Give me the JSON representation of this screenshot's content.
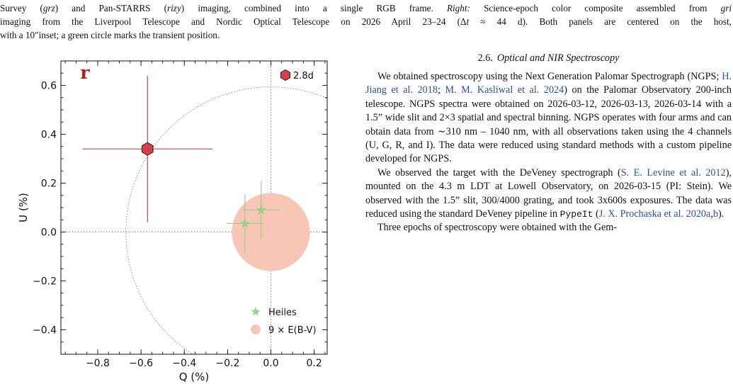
{
  "caption": {
    "line1": [
      {
        "t": "Survey ("
      },
      {
        "t": "grz",
        "i": true
      },
      {
        "t": ") and Pan-STARRS ("
      },
      {
        "t": "rizy",
        "i": true
      },
      {
        "t": ") imaging, combined into a single RGB frame. "
      },
      {
        "t": "Right:",
        "i": true
      },
      {
        "t": " Science-epoch color composite assembled from "
      },
      {
        "t": "gri",
        "i": true
      }
    ],
    "line2": [
      {
        "t": "imaging from the Liverpool Telescope and Nordic Optical Telescope on 2026 April 23–24 (Δ"
      },
      {
        "t": "t",
        "i": true
      },
      {
        "t": " ≈ 44 d). Both panels are centered on the host,"
      }
    ],
    "line3": [
      {
        "t": "with a 10″inset; a green circle marks the transient position."
      }
    ]
  },
  "chart_data": {
    "type": "scatter",
    "xlabel": "Q (%)",
    "ylabel": "U (%)",
    "xlim": [
      -0.97,
      0.26
    ],
    "ylim": [
      -0.5,
      0.7
    ],
    "xticks": [
      -0.8,
      -0.6,
      -0.4,
      -0.2,
      0.0,
      0.2
    ],
    "xtick_labels": [
      "−0.8",
      "−0.6",
      "−0.4",
      "−0.2",
      "0.0",
      "0.2"
    ],
    "yticks": [
      -0.4,
      -0.2,
      0.0,
      0.2,
      0.4,
      0.6
    ],
    "ytick_labels": [
      "−0.4",
      "−0.2",
      "0.0",
      "0.2",
      "0.4",
      "0.6"
    ],
    "panel_label": "r",
    "reference_circle_radius": 0.67,
    "isp_disk": {
      "name": "9 × E(B-V)",
      "q": 0.0,
      "u": 0.0,
      "radius": 0.18,
      "color": "#f8c6b6"
    },
    "heiles": {
      "name": "Heiles",
      "color": "#9cd08a",
      "points": [
        {
          "q": -0.12,
          "u": 0.035,
          "q_err": 0.085,
          "u_err": 0.12
        },
        {
          "q": -0.045,
          "u": 0.09,
          "q_err": 0.085,
          "u_err": 0.12
        }
      ]
    },
    "measurement": {
      "q": -0.57,
      "u": 0.34,
      "q_err": 0.3,
      "u_err": 0.3,
      "color": "#d6404c",
      "epoch_label": "2.8d"
    },
    "legend_position": "lower-right",
    "grid": false
  },
  "section": {
    "number": "2.6.",
    "title": "Optical and NIR Spectroscopy",
    "paragraphs": [
      [
        {
          "t": "We obtained spectroscopy using the Next Generation Palomar Spectrograph (NGPS; "
        },
        {
          "t": "H. Jiang et al. 2018",
          "c": true
        },
        {
          "t": "; "
        },
        {
          "t": "M. M. Kasliwal et al. 2024",
          "c": true
        },
        {
          "t": ") on the Palomar Observatory 200-inch telescope. NGPS spectra were obtained on 2026-03-12, 2026-03-13, 2026-03-14 with a 1.5” wide slit and 2×3 spatial and spectral binning. NGPS operates with four arms and can obtain data from ∼310 nm – 1040 nm, with all observations taken using the 4 channels (U, G, R, and I). The data were reduced using standard methods with a custom pipeline developed for NGPS."
        }
      ],
      [
        {
          "t": "We observed the target with the DeVeney spectrograph ("
        },
        {
          "t": "S. E. Levine et al. 2012",
          "c": true
        },
        {
          "t": "), mounted on the 4.3 m LDT at Lowell Observatory, on 2026-03-15 (PI: Stein). We observed with the 1.5” slit, 300/4000 grating, and took 3x600s exposures. The data was reduced using the standard DeVeney pipeline in "
        },
        {
          "t": "PypeIt",
          "m": true
        },
        {
          "t": " ("
        },
        {
          "t": "J. X. Prochaska et al. 2020a",
          "c": true
        },
        {
          "t": ","
        },
        {
          "t": "b",
          "c": true
        },
        {
          "t": ")."
        }
      ],
      [
        {
          "t": "Three epochs of spectroscopy were obtained with the Gem-"
        }
      ]
    ]
  }
}
